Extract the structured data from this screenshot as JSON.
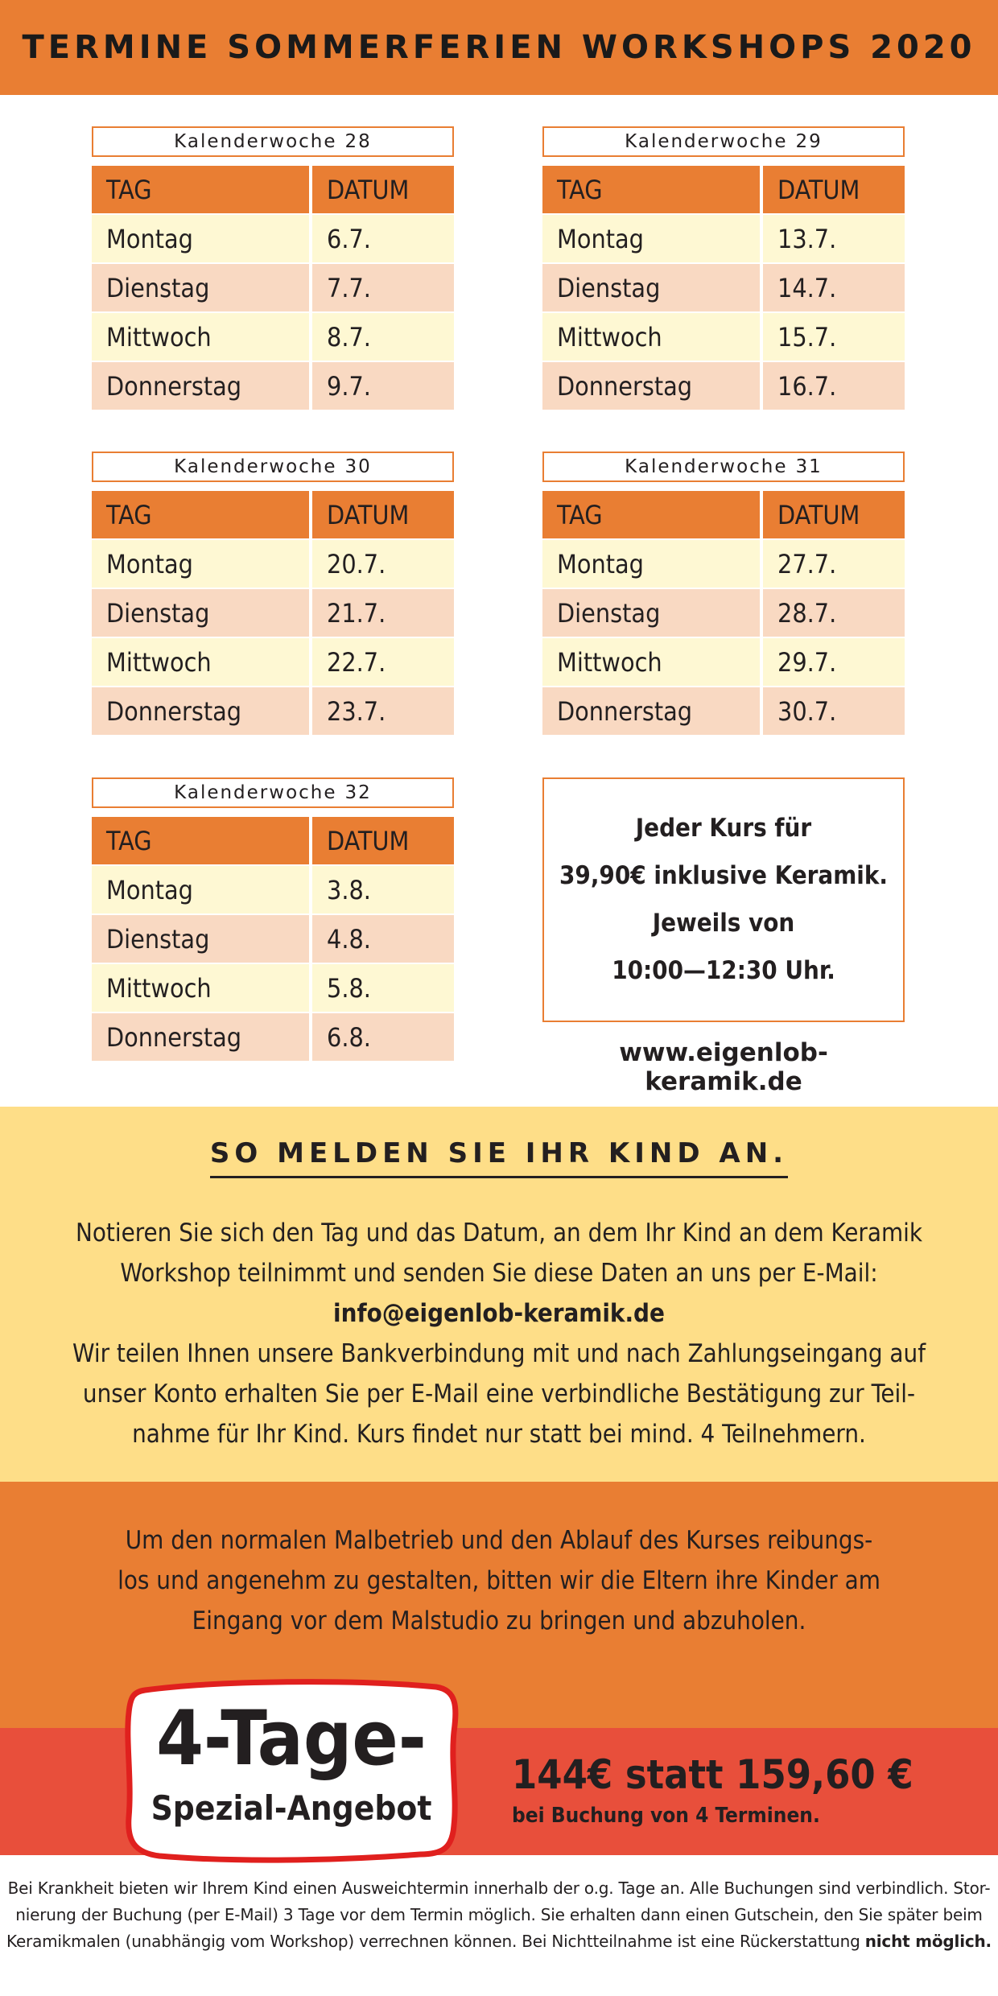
{
  "header": {
    "title": "TERMINE SOMMERFERIEN WORKSHOPS 2020"
  },
  "table_headers": {
    "day": "TAG",
    "date": "DATUM"
  },
  "weeks": [
    {
      "label": "Kalenderwoche",
      "number": "28",
      "rows": [
        {
          "day": "Montag",
          "date": "6.7."
        },
        {
          "day": "Dienstag",
          "date": "7.7."
        },
        {
          "day": "Mittwoch",
          "date": "8.7."
        },
        {
          "day": "Donnerstag",
          "date": "9.7."
        }
      ]
    },
    {
      "label": "Kalenderwoche",
      "number": "29",
      "rows": [
        {
          "day": "Montag",
          "date": "13.7."
        },
        {
          "day": "Dienstag",
          "date": "14.7."
        },
        {
          "day": "Mittwoch",
          "date": "15.7."
        },
        {
          "day": "Donnerstag",
          "date": "16.7."
        }
      ]
    },
    {
      "label": "Kalenderwoche",
      "number": "30",
      "rows": [
        {
          "day": "Montag",
          "date": "20.7."
        },
        {
          "day": "Dienstag",
          "date": "21.7."
        },
        {
          "day": "Mittwoch",
          "date": "22.7."
        },
        {
          "day": "Donnerstag",
          "date": "23.7."
        }
      ]
    },
    {
      "label": "Kalenderwoche",
      "number": "31",
      "rows": [
        {
          "day": "Montag",
          "date": "27.7."
        },
        {
          "day": "Dienstag",
          "date": "28.7."
        },
        {
          "day": "Mittwoch",
          "date": "29.7."
        },
        {
          "day": "Donnerstag",
          "date": "30.7."
        }
      ]
    },
    {
      "label": "Kalenderwoche",
      "number": "32",
      "rows": [
        {
          "day": "Montag",
          "date": "3.8."
        },
        {
          "day": "Dienstag",
          "date": "4.8."
        },
        {
          "day": "Mittwoch",
          "date": "5.8."
        },
        {
          "day": "Donnerstag",
          "date": "6.8."
        }
      ]
    }
  ],
  "info_box": {
    "lines": [
      "Jeder Kurs für",
      "39,90€ inklusive Keramik.",
      "Jeweils von",
      "10:00—12:30 Uhr."
    ]
  },
  "website": "www.eigenlob-keramik.de",
  "registration": {
    "title": "SO MELDEN SIE IHR KIND AN.",
    "line1": "Notieren Sie sich den Tag und das Datum, an dem Ihr Kind an dem Keramik",
    "line2": "Workshop teilnimmt und senden Sie diese Daten an uns per E-Mail:",
    "email": "info@eigenlob-keramik.de",
    "line3": "Wir teilen Ihnen unsere Bankverbindung mit und nach Zahlungseingang auf",
    "line4": "unser Konto erhalten Sie per E-Mail eine verbindliche Bestätigung zur Teil-",
    "line5": "nahme für Ihr Kind. Kurs findet nur statt bei mind. 4 Teilnehmern."
  },
  "parents_note": {
    "line1": "Um den normalen Malbetrieb und den Ablauf des Kurses reibungs-",
    "line2": "los und angenehm zu gestalten, bitten wir die Eltern ihre Kinder am",
    "line3": "Eingang vor dem Malstudio zu bringen und abzuholen."
  },
  "special_offer": {
    "badge_big": "4-Tage-",
    "badge_small": "Spezial-Angebot",
    "price": "144€ statt 159,60 €",
    "note": "bei Buchung von 4 Terminen."
  },
  "footer": {
    "line1": "Bei Krankheit bieten wir Ihrem Kind einen Ausweichtermin innerhalb der o.g. Tage an. Alle Buchungen sind verbindlich. Stor-",
    "line2": "nierung der Buchung (per E-Mail) 3 Tage vor dem Termin möglich. Sie erhalten dann einen Gutschein, den Sie später beim",
    "line3": "Keramikmalen (unabhängig vom Workshop) verrechnen können. Bei Nichtteilnahme ist eine Rückerstattung",
    "line3_bold": "nicht möglich."
  },
  "colors": {
    "orange": "#e97e33",
    "yellow": "#fede88",
    "red": "#e84f3b",
    "row_light": "#fef8d3",
    "row_peach": "#f9d9c2"
  }
}
